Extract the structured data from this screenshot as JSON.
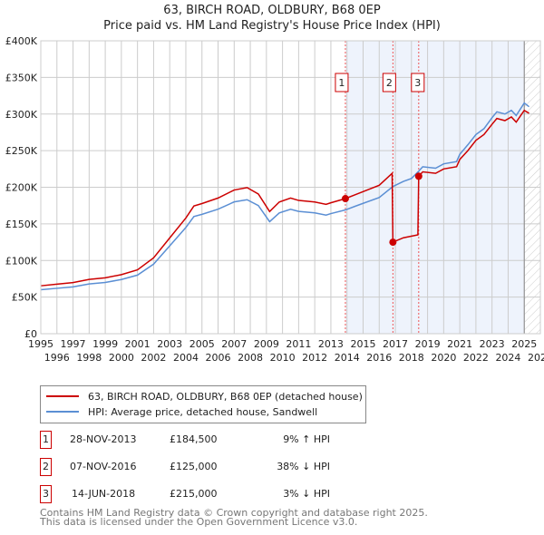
{
  "title_line1": "63, BIRCH ROAD, OLDBURY, B68 0EP",
  "title_line2": "Price paid vs. HM Land Registry's House Price Index (HPI)",
  "chart_data": {
    "type": "line",
    "units": "£ thousands",
    "xlim": [
      1995,
      2026
    ],
    "ylim": [
      0,
      400
    ],
    "yticks": [
      0,
      50,
      100,
      150,
      200,
      250,
      300,
      350,
      400
    ],
    "ytick_labels": [
      "£0",
      "£50K",
      "£100K",
      "£150K",
      "£200K",
      "£250K",
      "£300K",
      "£350K",
      "£400K"
    ],
    "xticks": [
      1995,
      1996,
      1997,
      1998,
      1999,
      2000,
      2001,
      2002,
      2003,
      2004,
      2005,
      2006,
      2007,
      2008,
      2009,
      2010,
      2011,
      2012,
      2013,
      2014,
      2015,
      2016,
      2017,
      2018,
      2019,
      2020,
      2021,
      2022,
      2023,
      2024,
      2025,
      2026
    ],
    "grid": true,
    "shaded_range": [
      2013.9,
      2025.0
    ],
    "forecast_hatch_from": 2025.0,
    "series": [
      {
        "name": "63, BIRCH ROAD, OLDBURY, B68 0EP (detached house)",
        "color": "#cc0000",
        "points": [
          [
            1995,
            65.4
          ],
          [
            1996,
            67.6
          ],
          [
            1997,
            69.8
          ],
          [
            1998,
            74.1
          ],
          [
            1999,
            76.3
          ],
          [
            2000,
            80.7
          ],
          [
            2001,
            87.2
          ],
          [
            2002,
            103.6
          ],
          [
            2003,
            130.8
          ],
          [
            2004,
            158
          ],
          [
            2004.5,
            174.4
          ],
          [
            2005,
            177.7
          ],
          [
            2006,
            185.3
          ],
          [
            2007,
            196.2
          ],
          [
            2007.8,
            199.5
          ],
          [
            2008.5,
            190.8
          ],
          [
            2009.2,
            166.8
          ],
          [
            2009.8,
            179.9
          ],
          [
            2010.5,
            185.3
          ],
          [
            2011,
            182
          ],
          [
            2012,
            179.9
          ],
          [
            2012.7,
            176.6
          ],
          [
            2013,
            178.8
          ],
          [
            2013.9,
            184.5
          ],
          [
            2014.5,
            189.7
          ],
          [
            2015,
            194
          ],
          [
            2016,
            202.7
          ],
          [
            2016.8,
            219
          ],
          [
            2016.85,
            125
          ],
          [
            2017.5,
            131
          ],
          [
            2018.4,
            135
          ],
          [
            2018.45,
            215
          ],
          [
            2018.7,
            221
          ],
          [
            2019.5,
            219
          ],
          [
            2020,
            225
          ],
          [
            2020.8,
            228
          ],
          [
            2021,
            238
          ],
          [
            2021.5,
            250
          ],
          [
            2022,
            264
          ],
          [
            2022.5,
            272
          ],
          [
            2023,
            286
          ],
          [
            2023.3,
            294
          ],
          [
            2023.8,
            291
          ],
          [
            2024.2,
            296
          ],
          [
            2024.5,
            289
          ],
          [
            2025,
            305
          ],
          [
            2025.3,
            301
          ]
        ]
      },
      {
        "name": "HPI: Average price, detached house, Sandwell",
        "color": "#5b8fd4",
        "points": [
          [
            1995,
            60
          ],
          [
            1996,
            62
          ],
          [
            1997,
            64
          ],
          [
            1998,
            68
          ],
          [
            1999,
            70
          ],
          [
            2000,
            74
          ],
          [
            2001,
            80
          ],
          [
            2002,
            95
          ],
          [
            2003,
            120
          ],
          [
            2004,
            145
          ],
          [
            2004.5,
            160
          ],
          [
            2005,
            163
          ],
          [
            2006,
            170
          ],
          [
            2007,
            180
          ],
          [
            2007.8,
            183
          ],
          [
            2008.5,
            175
          ],
          [
            2009.2,
            153
          ],
          [
            2009.8,
            165
          ],
          [
            2010.5,
            170
          ],
          [
            2011,
            167
          ],
          [
            2012,
            165
          ],
          [
            2012.7,
            162
          ],
          [
            2013,
            164
          ],
          [
            2013.9,
            169
          ],
          [
            2014.5,
            174
          ],
          [
            2015,
            178
          ],
          [
            2016,
            186
          ],
          [
            2016.85,
            201
          ],
          [
            2017.5,
            208
          ],
          [
            2018,
            212
          ],
          [
            2018.45,
            222
          ],
          [
            2018.7,
            228
          ],
          [
            2019.5,
            226
          ],
          [
            2020,
            232
          ],
          [
            2020.8,
            235
          ],
          [
            2021,
            245
          ],
          [
            2021.5,
            258
          ],
          [
            2022,
            272
          ],
          [
            2022.5,
            280
          ],
          [
            2023,
            295
          ],
          [
            2023.3,
            303
          ],
          [
            2023.8,
            300
          ],
          [
            2024.2,
            305
          ],
          [
            2024.5,
            298
          ],
          [
            2025,
            315
          ],
          [
            2025.3,
            310
          ]
        ]
      }
    ],
    "sales": [
      {
        "label": "1",
        "x": 2013.9,
        "value": 184.5
      },
      {
        "label": "2",
        "x": 2016.85,
        "value": 125
      },
      {
        "label": "3",
        "x": 2018.45,
        "value": 215
      }
    ]
  },
  "legend": [
    {
      "label": "63, BIRCH ROAD, OLDBURY, B68 0EP (detached house)",
      "color": "#cc0000"
    },
    {
      "label": "HPI: Average price, detached house, Sandwell",
      "color": "#5b8fd4"
    }
  ],
  "transactions": [
    {
      "num": "1",
      "date": "28-NOV-2013",
      "price": "£184,500",
      "hpi": "9% ↑ HPI"
    },
    {
      "num": "2",
      "date": "07-NOV-2016",
      "price": "£125,000",
      "hpi": "38% ↓ HPI"
    },
    {
      "num": "3",
      "date": "14-JUN-2018",
      "price": "£215,000",
      "hpi": "3% ↓ HPI"
    }
  ],
  "footer_line1": "Contains HM Land Registry data © Crown copyright and database right 2025.",
  "footer_line2": "This data is licensed under the Open Government Licence v3.0."
}
